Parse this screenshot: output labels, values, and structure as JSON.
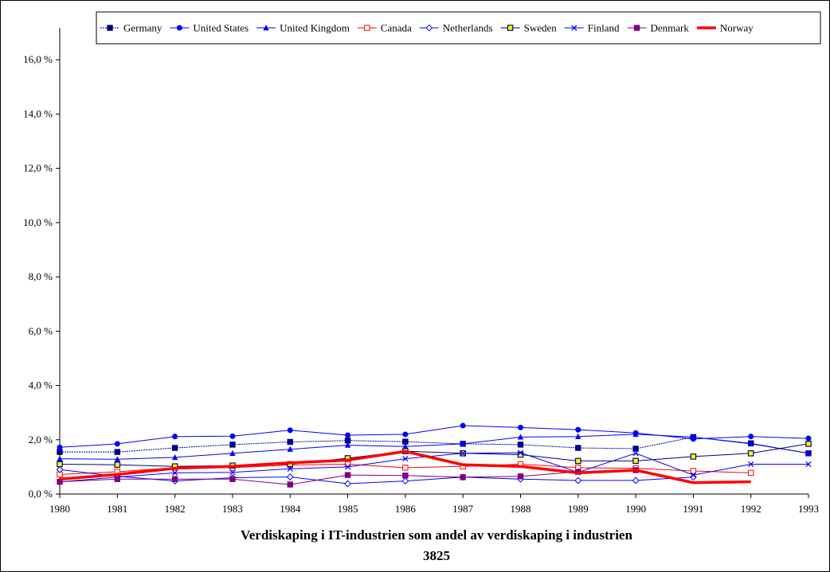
{
  "chart_data": {
    "type": "line",
    "title": "Verdiskaping i IT-industrien som andel av verdiskaping i industrien",
    "subtitle": "3825",
    "xlabel": "",
    "ylabel": "",
    "ylim": [
      0,
      17
    ],
    "yticks": [
      "0,0 %",
      "2,0 %",
      "4,0 %",
      "6,0 %",
      "8,0 %",
      "10,0 %",
      "12,0 %",
      "14,0 %",
      "16,0 %"
    ],
    "ytick_values": [
      0,
      2,
      4,
      6,
      8,
      10,
      12,
      14,
      16
    ],
    "categories": [
      "1980",
      "1981",
      "1982",
      "1983",
      "1984",
      "1985",
      "1986",
      "1987",
      "1988",
      "1989",
      "1990",
      "1991",
      "1992",
      "1993"
    ],
    "legend_position": "top-right",
    "grid": false,
    "series": [
      {
        "name": "Germany",
        "color": "#000080",
        "marker": "square-filled",
        "dash": "2,1",
        "width": 1,
        "values": [
          1.55,
          1.55,
          1.7,
          1.82,
          1.92,
          1.97,
          1.93,
          1.85,
          1.82,
          1.7,
          1.67,
          2.1,
          1.87,
          1.5
        ]
      },
      {
        "name": "United States",
        "color": "#0000ff",
        "marker": "circle-filled",
        "dash": "",
        "width": 1,
        "values": [
          1.72,
          1.85,
          2.12,
          2.13,
          2.35,
          2.17,
          2.2,
          2.52,
          2.45,
          2.37,
          2.25,
          2.03,
          2.12,
          2.05
        ]
      },
      {
        "name": "United Kingdom",
        "color": "#0000ff",
        "marker": "triangle-filled",
        "dash": "",
        "width": 1,
        "values": [
          1.3,
          1.28,
          1.35,
          1.5,
          1.65,
          1.8,
          1.75,
          1.85,
          2.1,
          2.12,
          2.2,
          2.1,
          1.85,
          1.5
        ]
      },
      {
        "name": "Canada",
        "color": "#ff0000",
        "marker": "square-open",
        "dash": "",
        "width": 1,
        "values": [
          0.72,
          0.82,
          0.97,
          0.97,
          1.07,
          1.1,
          0.97,
          1.02,
          1.1,
          0.97,
          0.95,
          0.85,
          0.78,
          null
        ]
      },
      {
        "name": "Netherlands",
        "color": "#0000ff",
        "marker": "diamond-open",
        "dash": "",
        "width": 1,
        "values": [
          0.9,
          0.65,
          0.48,
          0.6,
          0.63,
          0.38,
          0.48,
          0.62,
          0.55,
          0.5,
          0.5,
          0.62,
          null,
          null
        ]
      },
      {
        "name": "Sweden",
        "color": "#000080",
        "marker": "square-yellow",
        "dash": "",
        "width": 1,
        "values": [
          1.1,
          1.08,
          1.02,
          1.05,
          1.1,
          1.32,
          1.58,
          1.5,
          1.45,
          1.22,
          1.22,
          1.38,
          1.5,
          1.85
        ]
      },
      {
        "name": "Finland",
        "color": "#0000ff",
        "marker": "x",
        "dash": "",
        "width": 1,
        "values": [
          0.45,
          0.62,
          0.78,
          0.8,
          0.93,
          1.0,
          1.3,
          1.5,
          1.52,
          0.8,
          1.5,
          0.7,
          1.1,
          1.1
        ]
      },
      {
        "name": "Denmark",
        "color": "#800080",
        "marker": "square-filled",
        "dash": "",
        "width": 1,
        "values": [
          0.45,
          0.55,
          0.55,
          0.55,
          0.35,
          0.7,
          0.68,
          0.62,
          0.65,
          0.82,
          0.88,
          null,
          null,
          null
        ]
      },
      {
        "name": "Norway",
        "color": "#ff0000",
        "marker": "none",
        "dash": "",
        "width": 3.5,
        "values": [
          0.55,
          0.72,
          0.95,
          1.02,
          1.15,
          1.25,
          1.57,
          1.08,
          1.02,
          0.78,
          0.88,
          0.42,
          0.45,
          null
        ]
      }
    ]
  }
}
